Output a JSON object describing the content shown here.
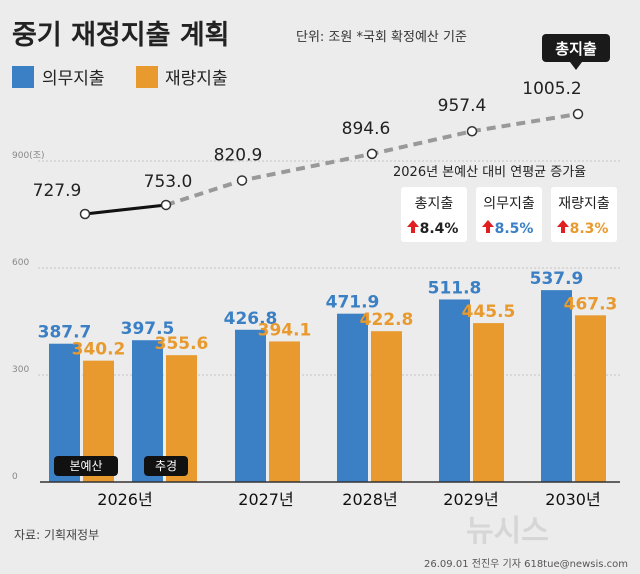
{
  "title": "중기 재정지출 계획",
  "unit_note": "단위: 조원  *국회 확정예산 기준",
  "source": "자료: 기획재정부",
  "credit": "26.09.01 전진우 기자 618tue@newsis.com",
  "logo": "뉴시스",
  "colors": {
    "blue": "#3b7fc4",
    "orange": "#e89a2f",
    "line_dash": "#999999",
    "line_solid": "#111111",
    "growth_arrow": "#e02020"
  },
  "chart_data": {
    "type": "bar",
    "categories": [
      "2026년 본예산",
      "2026년 추경",
      "2027년",
      "2028년",
      "2029년",
      "2030년"
    ],
    "x_labels": [
      "2026년",
      "2027년",
      "2028년",
      "2029년",
      "2030년"
    ],
    "bar_badges": [
      "본예산",
      "추경"
    ],
    "series": [
      {
        "name": "의무지출",
        "values": [
          387.7,
          397.5,
          426.8,
          471.9,
          511.8,
          537.9
        ]
      },
      {
        "name": "재량지출",
        "values": [
          340.2,
          355.6,
          394.1,
          422.8,
          445.5,
          467.3
        ]
      }
    ],
    "line": {
      "name": "총지출",
      "values": [
        727.9,
        753.0,
        820.9,
        894.6,
        957.4,
        1005.2
      ]
    },
    "line_labels": [
      "727.9",
      "753.0",
      "820.9",
      "894.6",
      "957.4",
      "1005.2"
    ],
    "bar_labels_blue": [
      "387.7",
      "397.5",
      "426.8",
      "471.9",
      "511.8",
      "537.9"
    ],
    "bar_labels_orange": [
      "340.2",
      "355.6",
      "394.1",
      "422.8",
      "445.5",
      "467.3"
    ],
    "y_ticks": [
      "0",
      "300",
      "600",
      "900(조)"
    ],
    "y_tick_values": [
      0,
      300,
      600,
      900
    ],
    "ylim": [
      0,
      1050
    ],
    "legend_placement": "top-left",
    "grid": true
  },
  "growth": {
    "title": "2026년 본예산 대비 연평균 증가율",
    "items": [
      {
        "label": "총지출",
        "value": "8.4%"
      },
      {
        "label": "의무지출",
        "value": "8.5%"
      },
      {
        "label": "재량지출",
        "value": "8.3%"
      }
    ]
  }
}
